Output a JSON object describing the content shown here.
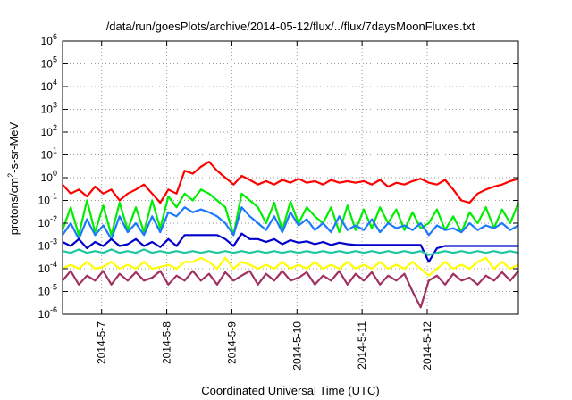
{
  "chart_data": {
    "type": "line",
    "title": "/data/run/goesPlots/archive/2014-05-12/flux/../flux/7daysMoonFluxes.txt",
    "xlabel": "Coordinated Universal Time (UTC)",
    "ylabel": {
      "base": "protons/cm",
      "sup": "2",
      "rest": "-s-sr-MeV"
    },
    "yscale": "log",
    "ylim": [
      1e-06,
      1000000.0
    ],
    "xlim": [
      0,
      7
    ],
    "y_ticks": [
      {
        "exp": "-6",
        "value": 1e-06
      },
      {
        "exp": "-5",
        "value": 1e-05
      },
      {
        "exp": "-4",
        "value": 0.0001
      },
      {
        "exp": "-3",
        "value": 0.001
      },
      {
        "exp": "-2",
        "value": 0.01
      },
      {
        "exp": "-1",
        "value": 0.1
      },
      {
        "exp": "0",
        "value": 1
      },
      {
        "exp": "1",
        "value": 10
      },
      {
        "exp": "2",
        "value": 100
      },
      {
        "exp": "3",
        "value": 1000
      },
      {
        "exp": "4",
        "value": 10000
      },
      {
        "exp": "5",
        "value": 100000
      },
      {
        "exp": "6",
        "value": 1000000
      }
    ],
    "y_tick_base": "10",
    "x_ticks": [
      {
        "label": "2014-5-7",
        "value": 0.6
      },
      {
        "label": "2014-5-8",
        "value": 1.6
      },
      {
        "label": "2014-5-9",
        "value": 2.6
      },
      {
        "label": "2014-5-10",
        "value": 3.6
      },
      {
        "label": "2014-5-11",
        "value": 4.6
      },
      {
        "label": "2014-5-12",
        "value": 5.6
      }
    ],
    "grid": {
      "y": true,
      "x": true,
      "style": "dotted"
    },
    "x": [
      0.0,
      0.125,
      0.25,
      0.375,
      0.5,
      0.625,
      0.75,
      0.875,
      1.0,
      1.125,
      1.25,
      1.375,
      1.5,
      1.625,
      1.75,
      1.875,
      2.0,
      2.125,
      2.25,
      2.375,
      2.5,
      2.625,
      2.75,
      2.875,
      3.0,
      3.125,
      3.25,
      3.375,
      3.5,
      3.625,
      3.75,
      3.875,
      4.0,
      4.125,
      4.25,
      4.375,
      4.5,
      4.625,
      4.75,
      4.875,
      5.0,
      5.125,
      5.25,
      5.375,
      5.5,
      5.625,
      5.75,
      5.875,
      6.0,
      6.125,
      6.25,
      6.375,
      6.5,
      6.625,
      6.75,
      6.875,
      7.0
    ],
    "series": [
      {
        "color": "#ff0000",
        "values": [
          0.5,
          0.2,
          0.3,
          0.15,
          0.4,
          0.2,
          0.3,
          0.1,
          0.2,
          0.3,
          0.5,
          0.2,
          0.08,
          0.3,
          0.2,
          2.0,
          1.5,
          3.0,
          5.0,
          2.0,
          1.0,
          0.5,
          1.2,
          0.8,
          0.5,
          0.7,
          0.5,
          0.8,
          0.6,
          0.9,
          0.6,
          0.7,
          0.5,
          0.8,
          0.6,
          0.7,
          0.6,
          0.7,
          0.5,
          0.8,
          0.4,
          0.6,
          0.5,
          0.7,
          0.9,
          0.6,
          0.5,
          0.8,
          0.3,
          0.1,
          0.08,
          0.2,
          0.3,
          0.4,
          0.5,
          0.7,
          0.9
        ]
      },
      {
        "color": "#00ee00",
        "values": [
          0.005,
          0.05,
          0.003,
          0.1,
          0.004,
          0.06,
          0.003,
          0.08,
          0.005,
          0.05,
          0.004,
          0.1,
          0.006,
          0.15,
          0.05,
          0.2,
          0.1,
          0.3,
          0.2,
          0.1,
          0.05,
          0.003,
          0.2,
          0.1,
          0.05,
          0.01,
          0.08,
          0.005,
          0.09,
          0.01,
          0.05,
          0.02,
          0.01,
          0.05,
          0.004,
          0.06,
          0.005,
          0.04,
          0.006,
          0.05,
          0.01,
          0.04,
          0.005,
          0.03,
          0.006,
          0.01,
          0.04,
          0.005,
          0.02,
          0.004,
          0.03,
          0.01,
          0.05,
          0.006,
          0.04,
          0.01,
          0.08
        ]
      },
      {
        "color": "#1e78ff",
        "values": [
          0.003,
          0.01,
          0.002,
          0.015,
          0.003,
          0.008,
          0.002,
          0.02,
          0.004,
          0.01,
          0.003,
          0.02,
          0.004,
          0.03,
          0.02,
          0.05,
          0.03,
          0.04,
          0.03,
          0.02,
          0.01,
          0.003,
          0.05,
          0.02,
          0.01,
          0.005,
          0.02,
          0.004,
          0.03,
          0.008,
          0.015,
          0.005,
          0.01,
          0.004,
          0.02,
          0.005,
          0.008,
          0.005,
          0.015,
          0.004,
          0.01,
          0.006,
          0.008,
          0.005,
          0.01,
          0.003,
          0.008,
          0.005,
          0.006,
          0.004,
          0.01,
          0.005,
          0.008,
          0.006,
          0.01,
          0.005,
          0.008
        ]
      },
      {
        "color": "#0000cc",
        "values": [
          0.0015,
          0.001,
          0.002,
          0.0008,
          0.0015,
          0.001,
          0.002,
          0.001,
          0.0012,
          0.002,
          0.001,
          0.0015,
          0.0009,
          0.002,
          0.001,
          0.003,
          0.003,
          0.003,
          0.003,
          0.003,
          0.002,
          0.001,
          0.0035,
          0.002,
          0.002,
          0.0015,
          0.002,
          0.0012,
          0.0018,
          0.0014,
          0.0016,
          0.0012,
          0.0015,
          0.0011,
          0.0014,
          0.0012,
          0.0011,
          0.0011,
          0.0011,
          0.0011,
          0.0011,
          0.0011,
          0.0011,
          0.0011,
          0.0011,
          0.0002,
          0.0008,
          0.001,
          0.001,
          0.001,
          0.001,
          0.001,
          0.001,
          0.001,
          0.001,
          0.001,
          0.001
        ]
      },
      {
        "color": "#20c8a0",
        "values": [
          0.0006,
          0.0005,
          0.0007,
          0.0005,
          0.0006,
          0.0005,
          0.0007,
          0.0005,
          0.0006,
          0.0005,
          0.0007,
          0.0005,
          0.0006,
          0.0005,
          0.0006,
          0.0005,
          0.0006,
          0.0005,
          0.0006,
          0.0005,
          0.0006,
          0.0005,
          0.0006,
          0.0005,
          0.0006,
          0.0005,
          0.0006,
          0.0005,
          0.0006,
          0.0005,
          0.0006,
          0.0005,
          0.0006,
          0.0005,
          0.0006,
          0.0005,
          0.0006,
          0.0005,
          0.0006,
          0.0005,
          0.0006,
          0.0005,
          0.0006,
          0.0005,
          0.0006,
          0.0004,
          0.0005,
          0.0006,
          0.0005,
          0.0006,
          0.0005,
          0.0006,
          0.0005,
          0.0006,
          0.0005,
          0.0006,
          0.0005
        ]
      },
      {
        "color": "#ffff00",
        "values": [
          0.0001,
          0.00015,
          0.0001,
          0.0002,
          0.0001,
          0.00012,
          0.0002,
          0.0001,
          0.00015,
          0.0001,
          0.0002,
          0.0001,
          0.00012,
          0.00015,
          0.0001,
          0.0002,
          0.0002,
          0.0003,
          0.0002,
          0.0001,
          0.0003,
          0.0001,
          0.0002,
          0.00015,
          0.0001,
          0.00015,
          0.0001,
          0.0002,
          0.0001,
          0.00015,
          0.0001,
          0.0002,
          0.0001,
          0.00015,
          0.0001,
          0.0002,
          0.0001,
          0.00015,
          0.0001,
          0.0002,
          0.0001,
          0.00015,
          0.0001,
          0.0002,
          0.0001,
          5e-05,
          0.0001,
          0.0002,
          0.0001,
          0.00015,
          0.0001,
          0.0002,
          0.0003,
          0.0001,
          0.0002,
          0.0001,
          0.00015
        ]
      },
      {
        "color": "#a03060",
        "values": [
          3e-05,
          8e-05,
          2e-05,
          5e-05,
          3e-05,
          8e-05,
          2e-05,
          6e-05,
          3e-05,
          7e-05,
          3e-05,
          4e-05,
          8e-05,
          2e-05,
          5e-05,
          3e-05,
          8e-05,
          3e-05,
          6e-05,
          2e-05,
          7e-05,
          3e-05,
          5e-05,
          8e-05,
          2e-05,
          6e-05,
          3e-05,
          8e-05,
          3e-05,
          4e-05,
          7e-05,
          2e-05,
          5e-05,
          3e-05,
          8e-05,
          2e-05,
          6e-05,
          3e-05,
          7e-05,
          2e-05,
          5e-05,
          3e-05,
          6e-05,
          1e-05,
          2e-06,
          3e-05,
          5e-05,
          2e-05,
          6e-05,
          3e-05,
          4e-05,
          2e-05,
          5e-05,
          3e-05,
          7e-05,
          3e-05,
          8e-05
        ]
      }
    ]
  }
}
